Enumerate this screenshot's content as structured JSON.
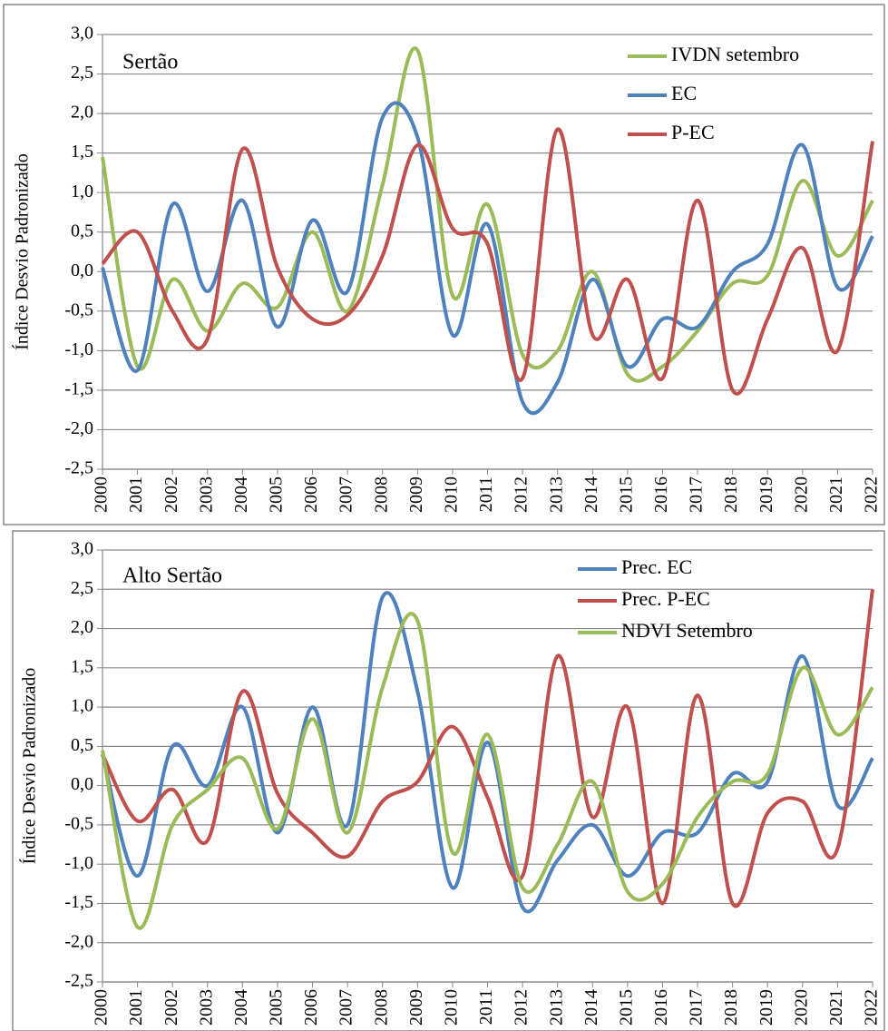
{
  "chart_data": [
    {
      "type": "line",
      "title": "Sertão",
      "y_label": "Índice Desvio Padronizado",
      "categories": [
        "2000",
        "2001",
        "2002",
        "2003",
        "2004",
        "2005",
        "2006",
        "2007",
        "2008",
        "2009",
        "2010",
        "2011",
        "2012",
        "2013",
        "2014",
        "2015",
        "2016",
        "2017",
        "2018",
        "2019",
        "2020",
        "2021",
        "2022"
      ],
      "series": [
        {
          "name": "IVDN setembro",
          "color": "#9bbb59",
          "values": [
            1.45,
            -1.2,
            -0.1,
            -0.75,
            -0.15,
            -0.45,
            0.5,
            -0.5,
            1.1,
            2.8,
            -0.3,
            0.85,
            -1.05,
            -1.0,
            0.0,
            -1.3,
            -1.2,
            -0.75,
            -0.15,
            -0.05,
            1.15,
            0.2,
            0.9
          ]
        },
        {
          "name": "EC",
          "color": "#4f81bd",
          "values": [
            0.05,
            -1.25,
            0.85,
            -0.25,
            0.9,
            -0.7,
            0.65,
            -0.25,
            1.95,
            1.7,
            -0.8,
            0.6,
            -1.65,
            -1.4,
            -0.1,
            -1.2,
            -0.6,
            -0.7,
            0.0,
            0.35,
            1.6,
            -0.2,
            0.45
          ]
        },
        {
          "name": "P-EC",
          "color": "#c0504d",
          "values": [
            0.1,
            0.5,
            -0.5,
            -0.85,
            1.55,
            0.05,
            -0.6,
            -0.55,
            0.2,
            1.6,
            0.55,
            0.35,
            -1.35,
            1.8,
            -0.8,
            -0.1,
            -1.35,
            0.9,
            -1.5,
            -0.6,
            0.3,
            -1.0,
            1.65
          ]
        }
      ],
      "ylim": [
        -2.5,
        3
      ],
      "yticks": [
        {
          "value": -2.5,
          "label": "-2,5"
        },
        {
          "value": -2,
          "label": "-2,0"
        },
        {
          "value": -1.5,
          "label": "-1,5"
        },
        {
          "value": -1,
          "label": "-1,0"
        },
        {
          "value": -0.5,
          "label": "-0,5"
        },
        {
          "value": 0,
          "label": "0,0"
        },
        {
          "value": 0.5,
          "label": "0,5"
        },
        {
          "value": 1,
          "label": "1,0"
        },
        {
          "value": 1.5,
          "label": "1,5"
        },
        {
          "value": 2,
          "label": "2,0"
        },
        {
          "value": 2.5,
          "label": "2,5"
        },
        {
          "value": 3,
          "label": "3,0"
        }
      ],
      "grid": true,
      "legend": "top-right"
    },
    {
      "type": "line",
      "title": "Alto Sertão",
      "y_label": "Índice Desvio Padronizado",
      "categories": [
        "2000",
        "2001",
        "2002",
        "2003",
        "2004",
        "2005",
        "2006",
        "2007",
        "2008",
        "2009",
        "2010",
        "2011",
        "2012",
        "2013",
        "2014",
        "2015",
        "2016",
        "2017",
        "2018",
        "2019",
        "2020",
        "2021",
        "2022"
      ],
      "series": [
        {
          "name": "Prec. EC",
          "color": "#4f81bd",
          "values": [
            0.4,
            -1.15,
            0.5,
            0.0,
            1.0,
            -0.6,
            1.0,
            -0.5,
            2.4,
            1.2,
            -1.3,
            0.55,
            -1.55,
            -0.95,
            -0.5,
            -1.15,
            -0.6,
            -0.6,
            0.15,
            0.05,
            1.65,
            -0.25,
            0.35
          ]
        },
        {
          "name": "Prec. P-EC",
          "color": "#c0504d",
          "values": [
            0.4,
            -0.45,
            -0.05,
            -0.7,
            1.2,
            -0.1,
            -0.6,
            -0.9,
            -0.2,
            0.05,
            0.75,
            -0.15,
            -1.15,
            1.65,
            -0.4,
            1.0,
            -1.5,
            1.15,
            -1.5,
            -0.35,
            -0.2,
            -0.8,
            2.5
          ]
        },
        {
          "name": "NDVI Setembro",
          "color": "#9bbb59",
          "values": [
            0.45,
            -1.8,
            -0.5,
            -0.05,
            0.35,
            -0.55,
            0.85,
            -0.6,
            1.25,
            2.1,
            -0.85,
            0.65,
            -1.3,
            -0.75,
            0.05,
            -1.35,
            -1.25,
            -0.4,
            0.05,
            0.15,
            1.5,
            0.65,
            1.25
          ]
        }
      ],
      "ylim": [
        -2.5,
        3
      ],
      "yticks": [
        {
          "value": -2.5,
          "label": "-2,5"
        },
        {
          "value": -2,
          "label": "-2,0"
        },
        {
          "value": -1.5,
          "label": "-1,5"
        },
        {
          "value": -1,
          "label": "-1,0"
        },
        {
          "value": -0.5,
          "label": "-0,5"
        },
        {
          "value": 0,
          "label": "0,0"
        },
        {
          "value": 0.5,
          "label": "0,5"
        },
        {
          "value": 1,
          "label": "1,0"
        },
        {
          "value": 1.5,
          "label": "1,5"
        },
        {
          "value": 2,
          "label": "2,0"
        },
        {
          "value": 2.5,
          "label": "2,5"
        },
        {
          "value": 3,
          "label": "3,0"
        }
      ],
      "grid": true,
      "legend": "top-right"
    }
  ]
}
